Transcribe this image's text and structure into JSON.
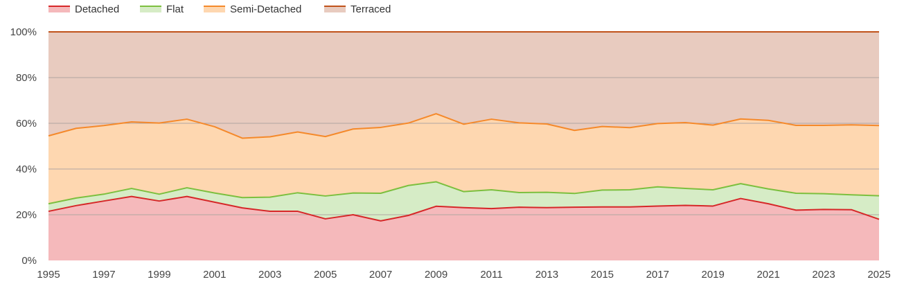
{
  "chart_data": {
    "type": "area",
    "stacked": true,
    "percent": true,
    "x": [
      1995,
      1996,
      1997,
      1998,
      1999,
      2000,
      2001,
      2002,
      2003,
      2004,
      2005,
      2006,
      2007,
      2008,
      2009,
      2010,
      2011,
      2012,
      2013,
      2014,
      2015,
      2016,
      2017,
      2018,
      2019,
      2020,
      2021,
      2022,
      2023,
      2024,
      2025
    ],
    "xticks": [
      "1995",
      "1997",
      "1999",
      "2001",
      "2003",
      "2005",
      "2007",
      "2009",
      "2011",
      "2013",
      "2015",
      "2017",
      "2019",
      "2021",
      "2023",
      "2025"
    ],
    "yticks": [
      "0%",
      "20%",
      "40%",
      "60%",
      "80%",
      "100%"
    ],
    "ylim": [
      0,
      100
    ],
    "grid": true,
    "legend_position": "top-left",
    "series": [
      {
        "name": "Detached",
        "line_color": "#d62728",
        "fill_color": "#f5b9bb",
        "values": [
          21.5,
          24,
          26,
          28,
          26,
          28,
          25.5,
          23,
          21.5,
          21.5,
          18.2,
          20,
          17.3,
          19.7,
          23.7,
          23.1,
          22.7,
          23.3,
          23.1,
          23.3,
          23.4,
          23.4,
          23.8,
          24.1,
          23.8,
          27.1,
          24.8,
          22,
          22.3,
          22.2,
          18
        ]
      },
      {
        "name": "Flat",
        "line_color": "#7cbf3e",
        "fill_color": "#d6ecc6",
        "values": [
          3.3,
          3.3,
          3,
          3.5,
          3,
          3.8,
          4,
          4.5,
          6.2,
          8.1,
          10,
          9.5,
          12.1,
          13.1,
          10.7,
          7,
          8.2,
          6.4,
          6.7,
          6,
          7.4,
          7.5,
          8.4,
          7.4,
          7.1,
          6.5,
          6.5,
          7.4,
          6.9,
          6.5,
          10.3
        ]
      },
      {
        "name": "Semi-Detached",
        "line_color": "#f5892a",
        "fill_color": "#fed7b0",
        "values": [
          29.7,
          30.5,
          30,
          29.1,
          31.1,
          30,
          29,
          26,
          26.4,
          26.6,
          26,
          28,
          28.8,
          27.3,
          29.8,
          29.5,
          30.9,
          30.5,
          29.9,
          27.6,
          27.8,
          27.2,
          27.7,
          28.8,
          28.3,
          28.3,
          30,
          29.7,
          29.9,
          30.6,
          30.7
        ]
      },
      {
        "name": "Terraced",
        "line_color": "#c0521a",
        "fill_color": "#e8cbbf",
        "values": [
          45.5,
          42.2,
          41,
          39.4,
          39.9,
          38.2,
          41.5,
          46.5,
          45.9,
          43.8,
          45.8,
          42.5,
          41.8,
          39.9,
          35.8,
          40.4,
          38.2,
          39.8,
          40.3,
          43.1,
          41.4,
          41.9,
          40.1,
          39.7,
          40.8,
          38.1,
          38.7,
          40.9,
          40.9,
          40.7,
          41
        ]
      }
    ]
  }
}
